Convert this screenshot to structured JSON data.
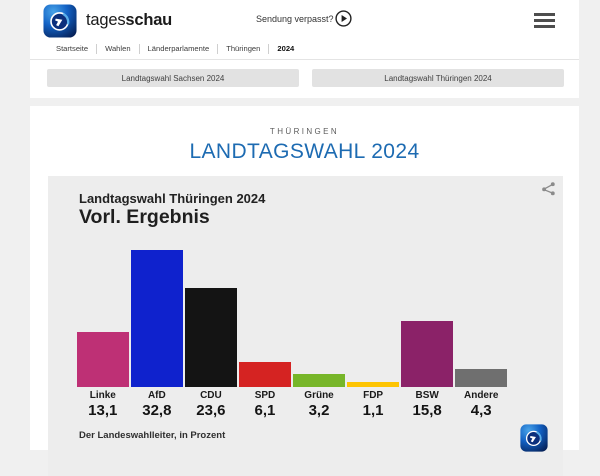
{
  "header": {
    "brand": {
      "regular": "tages",
      "bold": "schau"
    },
    "missed_show_label": "Sendung verpasst?"
  },
  "breadcrumb": {
    "items": [
      "Startseite",
      "Wahlen",
      "Länderparlamente",
      "Thüringen",
      "2024"
    ]
  },
  "quick_links": {
    "sachsen": "Landtagswahl Sachsen 2024",
    "thueringen": "Landtagswahl Thüringen 2024"
  },
  "page": {
    "kicker": "THÜRINGEN",
    "title": "LANDTAGSWAHL 2024"
  },
  "chart_data": {
    "type": "bar",
    "title": "Landtagswahl Thüringen 2024",
    "subtitle": "Vorl. Ergebnis",
    "categories": [
      "Linke",
      "AfD",
      "CDU",
      "SPD",
      "Grüne",
      "FDP",
      "BSW",
      "Andere"
    ],
    "values": [
      13.1,
      32.8,
      23.6,
      6.1,
      3.2,
      1.1,
      15.8,
      4.3
    ],
    "value_labels": [
      "13,1",
      "32,8",
      "23,6",
      "6,1",
      "3,2",
      "1,1",
      "15,8",
      "4,3"
    ],
    "bar_colors": [
      "#be3075",
      "#0f22cd",
      "#141414",
      "#d52322",
      "#77b629",
      "#fdc402",
      "#8b2268",
      "#6f6f6f"
    ],
    "unit": "Prozent",
    "ylim": [
      0,
      32.8
    ],
    "grid": false,
    "legend": "none",
    "source": "Der Landeswahlleiter, in Prozent"
  },
  "colors": {
    "accent_blue": "#1d6bb2",
    "page_background": "#f0f0f0",
    "card_background": "#ededed"
  }
}
